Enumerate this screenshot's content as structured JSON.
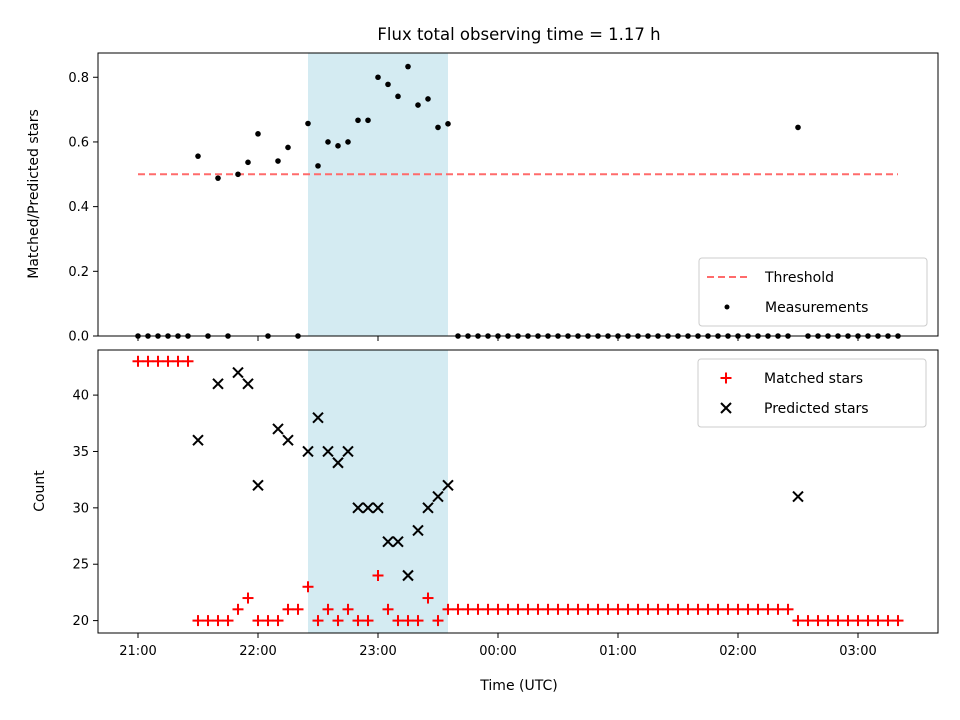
{
  "chart_data": [
    {
      "type": "scatter",
      "title": "Flux total observing time = 1.17 h",
      "xlabel": "",
      "ylabel": "Matched/Predicted stars",
      "ylim": [
        0,
        0.875
      ],
      "yticks": [
        0.0,
        0.2,
        0.4,
        0.6,
        0.8
      ],
      "ytick_labels": [
        "0.0",
        "0.2",
        "0.4",
        "0.6",
        "0.8"
      ],
      "highlight_span": {
        "from": "22:25",
        "to": "23:35",
        "color": "#add8e6"
      },
      "legend": {
        "position": "lower-right",
        "entries": [
          "Threshold",
          "Measurements"
        ]
      },
      "threshold": {
        "name": "Threshold",
        "y": 0.5,
        "x_from": "21:00",
        "x_to": "03:20",
        "color": "#ff6b6b"
      },
      "series": [
        {
          "name": "Measurements",
          "color": "#000000",
          "points": [
            {
              "x": "21:00",
              "y": 0
            },
            {
              "x": "21:05",
              "y": 0
            },
            {
              "x": "21:10",
              "y": 0
            },
            {
              "x": "21:15",
              "y": 0
            },
            {
              "x": "21:20",
              "y": 0
            },
            {
              "x": "21:25",
              "y": 0
            },
            {
              "x": "21:30",
              "y": 0.556
            },
            {
              "x": "21:35",
              "y": 0
            },
            {
              "x": "21:40",
              "y": 0.488
            },
            {
              "x": "21:45",
              "y": 0
            },
            {
              "x": "21:50",
              "y": 0.5
            },
            {
              "x": "21:55",
              "y": 0.537
            },
            {
              "x": "22:00",
              "y": 0.625
            },
            {
              "x": "22:05",
              "y": 0
            },
            {
              "x": "22:10",
              "y": 0.541
            },
            {
              "x": "22:15",
              "y": 0.583
            },
            {
              "x": "22:20",
              "y": 0
            },
            {
              "x": "22:25",
              "y": 0.657
            },
            {
              "x": "22:30",
              "y": 0.526
            },
            {
              "x": "22:35",
              "y": 0.6
            },
            {
              "x": "22:40",
              "y": 0.588
            },
            {
              "x": "22:45",
              "y": 0.6
            },
            {
              "x": "22:50",
              "y": 0.667
            },
            {
              "x": "22:55",
              "y": 0.667
            },
            {
              "x": "23:00",
              "y": 0.8
            },
            {
              "x": "23:05",
              "y": 0.778
            },
            {
              "x": "23:10",
              "y": 0.741
            },
            {
              "x": "23:15",
              "y": 0.833
            },
            {
              "x": "23:20",
              "y": 0.714
            },
            {
              "x": "23:25",
              "y": 0.733
            },
            {
              "x": "23:30",
              "y": 0.645
            },
            {
              "x": "23:35",
              "y": 0.656
            },
            {
              "x": "23:40",
              "y": 0
            },
            {
              "x": "23:45",
              "y": 0
            },
            {
              "x": "23:50",
              "y": 0
            },
            {
              "x": "23:55",
              "y": 0
            },
            {
              "x": "00:00",
              "y": 0
            },
            {
              "x": "00:05",
              "y": 0
            },
            {
              "x": "00:10",
              "y": 0
            },
            {
              "x": "00:15",
              "y": 0
            },
            {
              "x": "00:20",
              "y": 0
            },
            {
              "x": "00:25",
              "y": 0
            },
            {
              "x": "00:30",
              "y": 0
            },
            {
              "x": "00:35",
              "y": 0
            },
            {
              "x": "00:40",
              "y": 0
            },
            {
              "x": "00:45",
              "y": 0
            },
            {
              "x": "00:50",
              "y": 0
            },
            {
              "x": "00:55",
              "y": 0
            },
            {
              "x": "01:00",
              "y": 0
            },
            {
              "x": "01:05",
              "y": 0
            },
            {
              "x": "01:10",
              "y": 0
            },
            {
              "x": "01:15",
              "y": 0
            },
            {
              "x": "01:20",
              "y": 0
            },
            {
              "x": "01:25",
              "y": 0
            },
            {
              "x": "01:30",
              "y": 0
            },
            {
              "x": "01:35",
              "y": 0
            },
            {
              "x": "01:40",
              "y": 0
            },
            {
              "x": "01:45",
              "y": 0
            },
            {
              "x": "01:50",
              "y": 0
            },
            {
              "x": "01:55",
              "y": 0
            },
            {
              "x": "02:00",
              "y": 0
            },
            {
              "x": "02:05",
              "y": 0
            },
            {
              "x": "02:10",
              "y": 0
            },
            {
              "x": "02:15",
              "y": 0
            },
            {
              "x": "02:20",
              "y": 0
            },
            {
              "x": "02:25",
              "y": 0
            },
            {
              "x": "02:30",
              "y": 0.645
            },
            {
              "x": "02:35",
              "y": 0
            },
            {
              "x": "02:40",
              "y": 0
            },
            {
              "x": "02:45",
              "y": 0
            },
            {
              "x": "02:50",
              "y": 0
            },
            {
              "x": "02:55",
              "y": 0
            },
            {
              "x": "03:00",
              "y": 0
            },
            {
              "x": "03:05",
              "y": 0
            },
            {
              "x": "03:10",
              "y": 0
            },
            {
              "x": "03:15",
              "y": 0
            },
            {
              "x": "03:20",
              "y": 0
            }
          ]
        }
      ]
    },
    {
      "type": "scatter",
      "title": "",
      "xlabel": "Time (UTC)",
      "ylabel": "Count",
      "ylim": [
        18.9,
        44.0
      ],
      "yticks": [
        20,
        25,
        30,
        35,
        40
      ],
      "ytick_labels": [
        "20",
        "25",
        "30",
        "35",
        "40"
      ],
      "xticks": [
        "21:00",
        "22:00",
        "23:00",
        "00:00",
        "01:00",
        "02:00",
        "03:00"
      ],
      "highlight_span": {
        "from": "22:25",
        "to": "23:35",
        "color": "#add8e6"
      },
      "legend": {
        "position": "top-right",
        "entries": [
          "Matched stars",
          "Predicted stars"
        ]
      },
      "series": [
        {
          "name": "Matched stars",
          "marker": "plus",
          "color": "#ff0000",
          "points": [
            {
              "x": "21:00",
              "y": 43
            },
            {
              "x": "21:05",
              "y": 43
            },
            {
              "x": "21:10",
              "y": 43
            },
            {
              "x": "21:15",
              "y": 43
            },
            {
              "x": "21:20",
              "y": 43
            },
            {
              "x": "21:25",
              "y": 43
            },
            {
              "x": "21:30",
              "y": 20
            },
            {
              "x": "21:35",
              "y": 20
            },
            {
              "x": "21:40",
              "y": 20
            },
            {
              "x": "21:45",
              "y": 20
            },
            {
              "x": "21:50",
              "y": 21
            },
            {
              "x": "21:55",
              "y": 22
            },
            {
              "x": "22:00",
              "y": 20
            },
            {
              "x": "22:05",
              "y": 20
            },
            {
              "x": "22:10",
              "y": 20
            },
            {
              "x": "22:15",
              "y": 21
            },
            {
              "x": "22:20",
              "y": 21
            },
            {
              "x": "22:25",
              "y": 23
            },
            {
              "x": "22:30",
              "y": 20
            },
            {
              "x": "22:35",
              "y": 21
            },
            {
              "x": "22:40",
              "y": 20
            },
            {
              "x": "22:45",
              "y": 21
            },
            {
              "x": "22:50",
              "y": 20
            },
            {
              "x": "22:55",
              "y": 20
            },
            {
              "x": "23:00",
              "y": 24
            },
            {
              "x": "23:05",
              "y": 21
            },
            {
              "x": "23:10",
              "y": 20
            },
            {
              "x": "23:15",
              "y": 20
            },
            {
              "x": "23:20",
              "y": 20
            },
            {
              "x": "23:25",
              "y": 22
            },
            {
              "x": "23:30",
              "y": 20
            },
            {
              "x": "23:35",
              "y": 21
            },
            {
              "x": "23:40",
              "y": 21
            },
            {
              "x": "23:45",
              "y": 21
            },
            {
              "x": "23:50",
              "y": 21
            },
            {
              "x": "23:55",
              "y": 21
            },
            {
              "x": "00:00",
              "y": 21
            },
            {
              "x": "00:05",
              "y": 21
            },
            {
              "x": "00:10",
              "y": 21
            },
            {
              "x": "00:15",
              "y": 21
            },
            {
              "x": "00:20",
              "y": 21
            },
            {
              "x": "00:25",
              "y": 21
            },
            {
              "x": "00:30",
              "y": 21
            },
            {
              "x": "00:35",
              "y": 21
            },
            {
              "x": "00:40",
              "y": 21
            },
            {
              "x": "00:45",
              "y": 21
            },
            {
              "x": "00:50",
              "y": 21
            },
            {
              "x": "00:55",
              "y": 21
            },
            {
              "x": "01:00",
              "y": 21
            },
            {
              "x": "01:05",
              "y": 21
            },
            {
              "x": "01:10",
              "y": 21
            },
            {
              "x": "01:15",
              "y": 21
            },
            {
              "x": "01:20",
              "y": 21
            },
            {
              "x": "01:25",
              "y": 21
            },
            {
              "x": "01:30",
              "y": 21
            },
            {
              "x": "01:35",
              "y": 21
            },
            {
              "x": "01:40",
              "y": 21
            },
            {
              "x": "01:45",
              "y": 21
            },
            {
              "x": "01:50",
              "y": 21
            },
            {
              "x": "01:55",
              "y": 21
            },
            {
              "x": "02:00",
              "y": 21
            },
            {
              "x": "02:05",
              "y": 21
            },
            {
              "x": "02:10",
              "y": 21
            },
            {
              "x": "02:15",
              "y": 21
            },
            {
              "x": "02:20",
              "y": 21
            },
            {
              "x": "02:25",
              "y": 21
            },
            {
              "x": "02:30",
              "y": 20
            },
            {
              "x": "02:35",
              "y": 20
            },
            {
              "x": "02:40",
              "y": 20
            },
            {
              "x": "02:45",
              "y": 20
            },
            {
              "x": "02:50",
              "y": 20
            },
            {
              "x": "02:55",
              "y": 20
            },
            {
              "x": "03:00",
              "y": 20
            },
            {
              "x": "03:05",
              "y": 20
            },
            {
              "x": "03:10",
              "y": 20
            },
            {
              "x": "03:15",
              "y": 20
            },
            {
              "x": "03:20",
              "y": 20
            }
          ]
        },
        {
          "name": "Predicted stars",
          "marker": "x",
          "color": "#000000",
          "points": [
            {
              "x": "21:30",
              "y": 36
            },
            {
              "x": "21:40",
              "y": 41
            },
            {
              "x": "21:50",
              "y": 42
            },
            {
              "x": "21:55",
              "y": 41
            },
            {
              "x": "22:00",
              "y": 32
            },
            {
              "x": "22:10",
              "y": 37
            },
            {
              "x": "22:15",
              "y": 36
            },
            {
              "x": "22:25",
              "y": 35
            },
            {
              "x": "22:30",
              "y": 38
            },
            {
              "x": "22:35",
              "y": 35
            },
            {
              "x": "22:40",
              "y": 34
            },
            {
              "x": "22:45",
              "y": 35
            },
            {
              "x": "22:50",
              "y": 30
            },
            {
              "x": "22:55",
              "y": 30
            },
            {
              "x": "23:00",
              "y": 30
            },
            {
              "x": "23:05",
              "y": 27
            },
            {
              "x": "23:10",
              "y": 27
            },
            {
              "x": "23:15",
              "y": 24
            },
            {
              "x": "23:20",
              "y": 28
            },
            {
              "x": "23:25",
              "y": 30
            },
            {
              "x": "23:30",
              "y": 31
            },
            {
              "x": "23:35",
              "y": 32
            },
            {
              "x": "02:30",
              "y": 31
            }
          ]
        }
      ]
    }
  ]
}
